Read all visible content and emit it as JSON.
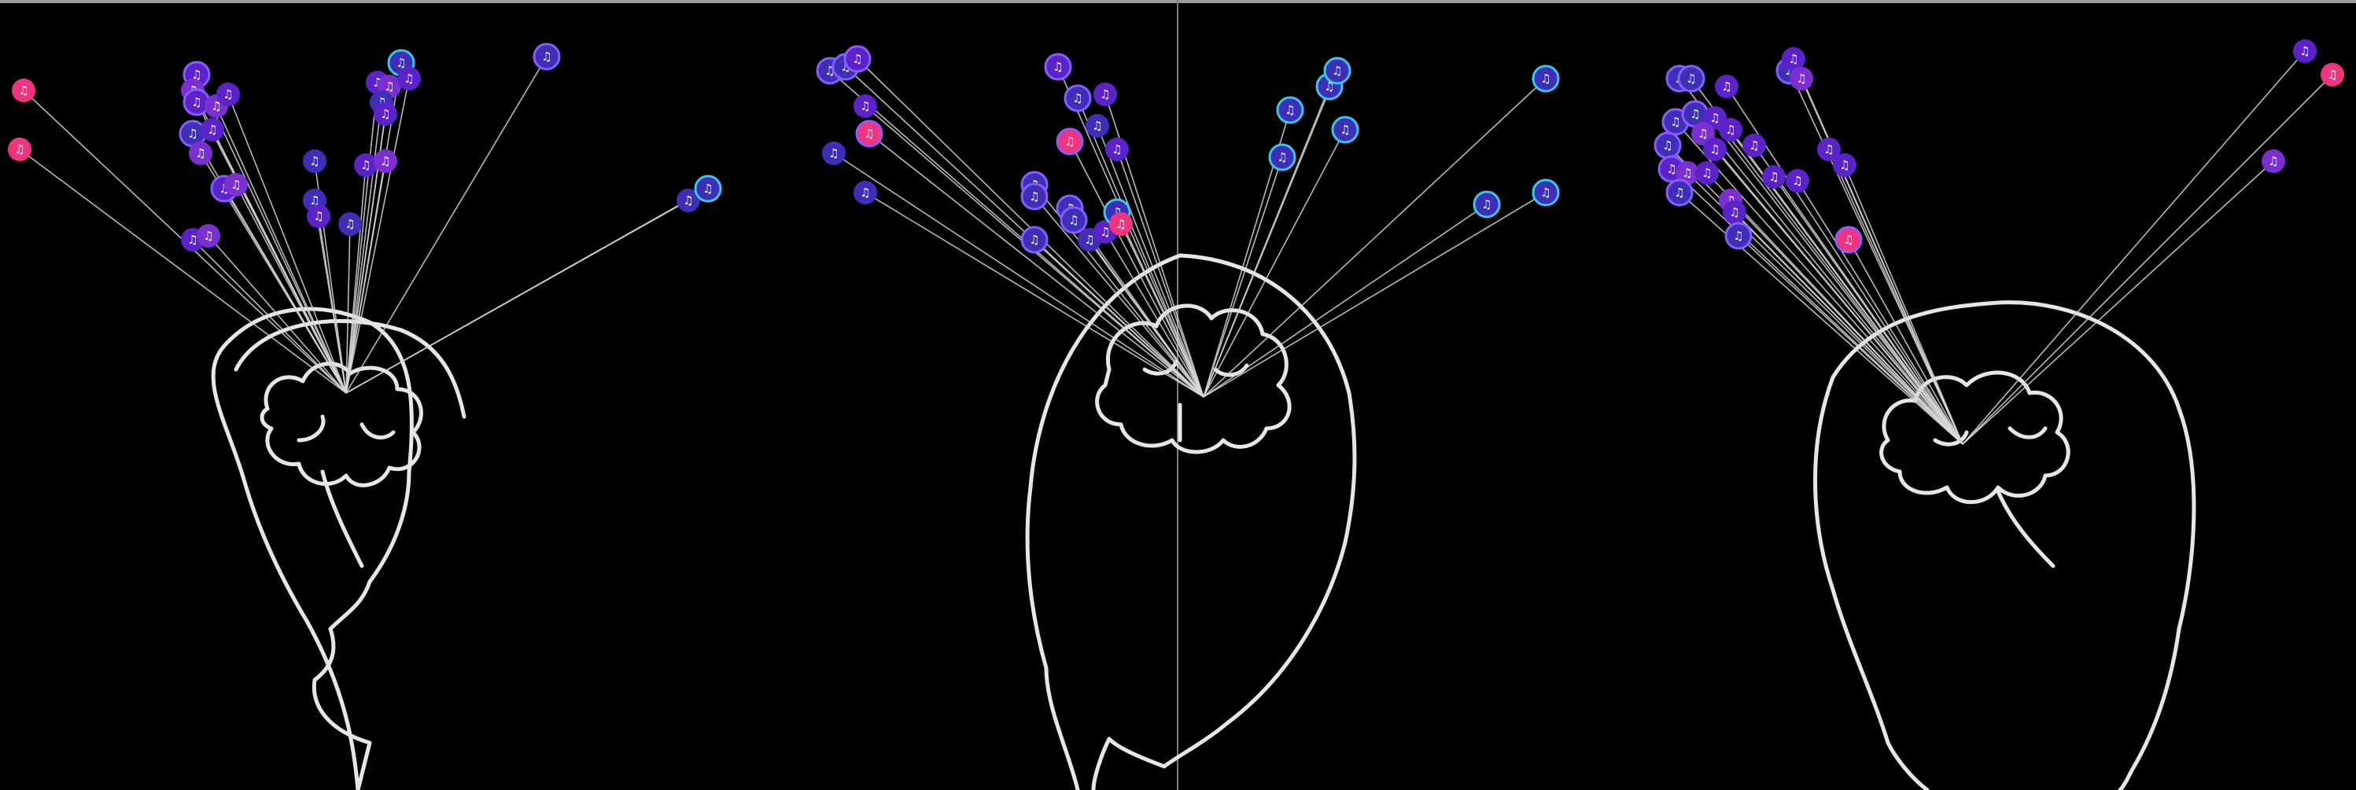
{
  "colors": {
    "background": "#000000",
    "outline": "#e6e6e6",
    "link": "#d8d8d8",
    "node_purple": "#5a22c8",
    "node_violet": "#7b2fd0",
    "node_blue": "#3d2fb8",
    "node_pink": "#f0347e",
    "ring_cyan": "#39c7f0",
    "ring_purple": "#8a5cff",
    "divider": "#7a7a7a"
  },
  "icons": {
    "node": "music-note-icon",
    "outline": "head-with-brain-outline"
  },
  "panels": [
    {
      "name": "head-left",
      "view": "side-left"
    },
    {
      "name": "head-center",
      "view": "front"
    },
    {
      "name": "head-right",
      "view": "side-right"
    }
  ]
}
